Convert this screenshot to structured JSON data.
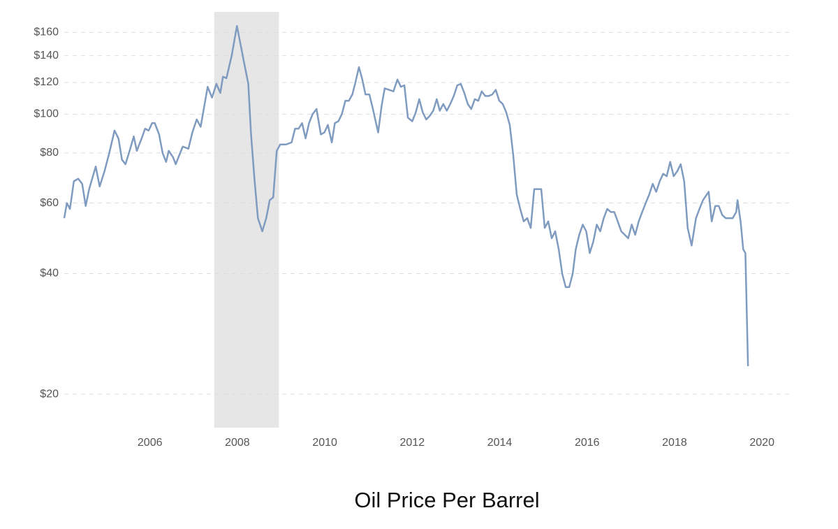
{
  "chart_data": {
    "type": "line",
    "title": "Oil Price Per Barrel",
    "log_scale": true,
    "grid": true,
    "color": "#7f9bbf",
    "recession": [
      2007.47,
      2008.95
    ],
    "xlim": [
      2004.04,
      2020.7
    ],
    "xticks": [
      2006,
      2008,
      2010,
      2012,
      2014,
      2016,
      2018,
      2020
    ],
    "ylim": [
      16.5,
      180
    ],
    "yticks": [
      {
        "value": 20,
        "label": "$20"
      },
      {
        "value": 40,
        "label": "$40"
      },
      {
        "value": 60,
        "label": "$60"
      },
      {
        "value": 80,
        "label": "$80"
      },
      {
        "value": 100,
        "label": "$100"
      },
      {
        "value": 120,
        "label": "$120"
      },
      {
        "value": 140,
        "label": "$140"
      },
      {
        "value": 160,
        "label": "$160"
      }
    ],
    "x": [
      2004.04,
      2004.1,
      2004.17,
      2004.26,
      2004.36,
      2004.45,
      2004.53,
      2004.61,
      2004.76,
      2004.85,
      2004.96,
      2005.07,
      2005.19,
      2005.28,
      2005.36,
      2005.44,
      2005.55,
      2005.63,
      2005.7,
      2005.81,
      2005.89,
      2005.97,
      2006.05,
      2006.11,
      2006.21,
      2006.29,
      2006.37,
      2006.43,
      2006.53,
      2006.59,
      2006.75,
      2006.88,
      2006.97,
      2007.07,
      2007.16,
      2007.32,
      2007.42,
      2007.52,
      2007.61,
      2007.67,
      2007.75,
      2007.87,
      2007.99,
      2008.09,
      2008.15,
      2008.25,
      2008.31,
      2008.39,
      2008.47,
      2008.57,
      2008.66,
      2008.74,
      2008.82,
      2008.9,
      2008.98,
      2009.11,
      2009.24,
      2009.32,
      2009.4,
      2009.48,
      2009.56,
      2009.64,
      2009.72,
      2009.81,
      2009.91,
      2009.99,
      2010.07,
      2010.16,
      2010.23,
      2010.31,
      2010.39,
      2010.47,
      2010.55,
      2010.63,
      2010.7,
      2010.78,
      2010.85,
      2010.93,
      2011.02,
      2011.1,
      2011.22,
      2011.3,
      2011.37,
      2011.47,
      2011.57,
      2011.66,
      2011.74,
      2011.82,
      2011.9,
      2012.0,
      2012.08,
      2012.16,
      2012.24,
      2012.32,
      2012.4,
      2012.48,
      2012.56,
      2012.63,
      2012.71,
      2012.79,
      2012.87,
      2012.95,
      2013.03,
      2013.11,
      2013.19,
      2013.27,
      2013.35,
      2013.43,
      2013.51,
      2013.59,
      2013.67,
      2013.75,
      2013.83,
      2013.91,
      2013.99,
      2014.07,
      2014.15,
      2014.23,
      2014.31,
      2014.39,
      2014.47,
      2014.55,
      2014.63,
      2014.71,
      2014.79,
      2014.87,
      2014.95,
      2015.03,
      2015.11,
      2015.19,
      2015.27,
      2015.35,
      2015.43,
      2015.51,
      2015.59,
      2015.67,
      2015.74,
      2015.82,
      2015.9,
      2015.98,
      2016.06,
      2016.14,
      2016.22,
      2016.3,
      2016.38,
      2016.46,
      2016.54,
      2016.62,
      2016.7,
      2016.78,
      2016.86,
      2016.94,
      2017.02,
      2017.1,
      2017.18,
      2017.26,
      2017.34,
      2017.42,
      2017.5,
      2017.58,
      2017.66,
      2017.74,
      2017.82,
      2017.9,
      2017.98,
      2018.06,
      2018.14,
      2018.22,
      2018.3,
      2018.39,
      2018.49,
      2018.57,
      2018.65,
      2018.78,
      2018.85,
      2018.93,
      2019.01,
      2019.09,
      2019.17,
      2019.25,
      2019.33,
      2019.41,
      2019.44,
      2019.51,
      2019.57,
      2019.62,
      2019.68
    ],
    "values": [
      55,
      60,
      58,
      68,
      69,
      67,
      59,
      65,
      74,
      66,
      72,
      80,
      91,
      87,
      77,
      75,
      82,
      88,
      81,
      87,
      92,
      91,
      95,
      95,
      89,
      80,
      76,
      81,
      78,
      75,
      83,
      82,
      90,
      97,
      93,
      117,
      110,
      119,
      113,
      124,
      123,
      140,
      166,
      146,
      135,
      119,
      90,
      69,
      55,
      51,
      55,
      61,
      62,
      81,
      84,
      84,
      85,
      92,
      92,
      95,
      87,
      95,
      100,
      103,
      89,
      90,
      94,
      85,
      95,
      96,
      100,
      108,
      108,
      112,
      120,
      131,
      123,
      112,
      112,
      103,
      90,
      105,
      116,
      115,
      114,
      122,
      117,
      118,
      98,
      96,
      101,
      109,
      101,
      97,
      99,
      102,
      109,
      102,
      106,
      102,
      106,
      111,
      118,
      119,
      113,
      106,
      103,
      109,
      108,
      114,
      111,
      111,
      112,
      115,
      108,
      106,
      101,
      94,
      79,
      63,
      58,
      54,
      55,
      52,
      65,
      65,
      65,
      52,
      54,
      49,
      51,
      46,
      40,
      37,
      37,
      40,
      46,
      50,
      53,
      51,
      45,
      48,
      53,
      51,
      55,
      58,
      57,
      57,
      54,
      51,
      50,
      49,
      53,
      50,
      54,
      57,
      60,
      63,
      67,
      64,
      68,
      71,
      70,
      76,
      70,
      72,
      75,
      68,
      52,
      47,
      55,
      58,
      61,
      64,
      54,
      59,
      59,
      56,
      55,
      55,
      55,
      57,
      61,
      54,
      46,
      45,
      23.5
    ]
  }
}
